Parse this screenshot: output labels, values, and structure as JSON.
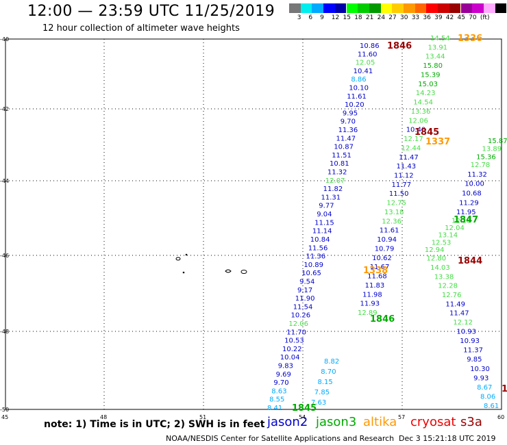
{
  "title": "12:00 — 23:59 UTC 11/25/2019",
  "subtitle": "12 hour collection of altimeter wave heights",
  "color_scale": {
    "colors": [
      "#777777",
      "#00eeee",
      "#00aaff",
      "#0000ff",
      "#0000aa",
      "#00ff00",
      "#00cc00",
      "#009900",
      "#ffff00",
      "#ffcc00",
      "#ff9900",
      "#ff6600",
      "#ff0000",
      "#cc0000",
      "#990000",
      "#990099",
      "#cc00cc",
      "#ffaaff",
      "#000000"
    ],
    "labels": [
      "3",
      "6",
      "9",
      "12",
      "15",
      "18",
      "21",
      "24",
      "27",
      "30",
      "33",
      "36",
      "39",
      "42",
      "45",
      "70",
      "(ft)"
    ]
  },
  "axes": {
    "lon_labels": [
      "45",
      "48",
      "51",
      "54",
      "57",
      "60"
    ],
    "lat_labels": [
      "-40",
      "-42",
      "-44",
      "-46",
      "-48",
      "-50"
    ]
  },
  "note": "note: 1) Time is in UTC; 2) SWH is in feet",
  "credit": "NOAA/NESDIS Center for Satellite Applications and Research",
  "generated": "Dec  3 15:21:18 UTC 2019",
  "satellites": [
    {
      "name": "jason2",
      "color": "#0000cc"
    },
    {
      "name": "jason3",
      "color": "#00aa00"
    },
    {
      "name": "altika",
      "color": "#ff9900"
    },
    {
      "name": "cryosat",
      "color": "#ee0000"
    },
    {
      "name": "s3a",
      "color": "#990000"
    }
  ],
  "tracks": [
    {
      "id": "track-a",
      "labels": [
        {
          "t": "10.86",
          "c": "#0000cc"
        },
        {
          "t": "11.60",
          "c": "#0000cc"
        },
        {
          "t": "12.05",
          "c": "#44dd44"
        },
        {
          "t": "10.41",
          "c": "#0000cc"
        },
        {
          "t": "8.86",
          "c": "#00aaff"
        },
        {
          "t": "10.10",
          "c": "#0000cc"
        },
        {
          "t": "11.61",
          "c": "#0000cc"
        },
        {
          "t": "10.20",
          "c": "#0000cc"
        },
        {
          "t": "9.95",
          "c": "#0000cc"
        },
        {
          "t": "9.70",
          "c": "#0000cc"
        },
        {
          "t": "11.36",
          "c": "#0000cc"
        },
        {
          "t": "11.47",
          "c": "#0000cc"
        },
        {
          "t": "10.87",
          "c": "#0000cc"
        },
        {
          "t": "11.51",
          "c": "#0000cc"
        },
        {
          "t": "10.81",
          "c": "#0000cc"
        },
        {
          "t": "11.32",
          "c": "#0000cc"
        },
        {
          "t": "12.07",
          "c": "#44dd44"
        },
        {
          "t": "11.82",
          "c": "#0000cc"
        },
        {
          "t": "11.31",
          "c": "#0000cc"
        },
        {
          "t": "9.77",
          "c": "#0000cc"
        },
        {
          "t": "9.04",
          "c": "#0000cc"
        },
        {
          "t": "11.15",
          "c": "#0000cc"
        },
        {
          "t": "11.14",
          "c": "#0000cc"
        },
        {
          "t": "10.84",
          "c": "#0000cc"
        },
        {
          "t": "11.56",
          "c": "#0000cc"
        },
        {
          "t": "11.36",
          "c": "#0000cc"
        },
        {
          "t": "10.89",
          "c": "#0000cc"
        },
        {
          "t": "10.65",
          "c": "#0000cc"
        },
        {
          "t": "9.54",
          "c": "#0000cc"
        },
        {
          "t": "9.17",
          "c": "#0000cc"
        },
        {
          "t": "11.90",
          "c": "#0000cc"
        },
        {
          "t": "11.54",
          "c": "#0000cc"
        },
        {
          "t": "10.26",
          "c": "#0000cc"
        },
        {
          "t": "12.06",
          "c": "#44dd44"
        },
        {
          "t": "11.70",
          "c": "#0000cc"
        },
        {
          "t": "10.53",
          "c": "#0000cc"
        },
        {
          "t": "10.22",
          "c": "#0000cc"
        },
        {
          "t": "10.04",
          "c": "#0000cc"
        },
        {
          "t": "9.83",
          "c": "#0000cc"
        },
        {
          "t": "9.69",
          "c": "#0000cc"
        },
        {
          "t": "9.70",
          "c": "#0000cc"
        },
        {
          "t": "8.63",
          "c": "#00aaff"
        },
        {
          "t": "8.55",
          "c": "#00aaff"
        },
        {
          "t": "8.41",
          "c": "#00aaff"
        }
      ]
    },
    {
      "id": "track-b",
      "labels": [
        {
          "t": "14.54",
          "c": "#44dd44"
        },
        {
          "t": "13.91",
          "c": "#44dd44"
        },
        {
          "t": "13.44",
          "c": "#44dd44"
        },
        {
          "t": "15.80",
          "c": "#00aa00"
        },
        {
          "t": "15.39",
          "c": "#00aa00"
        },
        {
          "t": "15.03",
          "c": "#00aa00"
        },
        {
          "t": "14.23",
          "c": "#44dd44"
        },
        {
          "t": "14.54",
          "c": "#44dd44"
        },
        {
          "t": "13.36",
          "c": "#44dd44"
        },
        {
          "t": "12.06",
          "c": "#44dd44"
        },
        {
          "t": "10.40",
          "c": "#0000cc"
        },
        {
          "t": "12.17",
          "c": "#44dd44"
        },
        {
          "t": "12.44",
          "c": "#44dd44"
        },
        {
          "t": "11.47",
          "c": "#0000cc"
        },
        {
          "t": "11.43",
          "c": "#0000cc"
        },
        {
          "t": "11.12",
          "c": "#0000cc"
        },
        {
          "t": "11.77",
          "c": "#0000cc"
        },
        {
          "t": "11.50",
          "c": "#0000cc"
        },
        {
          "t": "12.75",
          "c": "#44dd44"
        },
        {
          "t": "13.18",
          "c": "#44dd44"
        },
        {
          "t": "12.36",
          "c": "#44dd44"
        },
        {
          "t": "11.61",
          "c": "#0000cc"
        },
        {
          "t": "10.94",
          "c": "#0000cc"
        },
        {
          "t": "10.79",
          "c": "#0000cc"
        },
        {
          "t": "10.62",
          "c": "#0000cc"
        },
        {
          "t": "11.67",
          "c": "#0000cc"
        },
        {
          "t": "11.68",
          "c": "#0000cc"
        },
        {
          "t": "11.83",
          "c": "#0000cc"
        },
        {
          "t": "11.98",
          "c": "#0000cc"
        },
        {
          "t": "11.93",
          "c": "#0000cc"
        },
        {
          "t": "12.89",
          "c": "#44dd44"
        }
      ]
    },
    {
      "id": "track-c",
      "labels": [
        {
          "t": "15.87",
          "c": "#00aa00"
        },
        {
          "t": "13.89",
          "c": "#44dd44"
        },
        {
          "t": "15.36",
          "c": "#00aa00"
        },
        {
          "t": "12.78",
          "c": "#44dd44"
        },
        {
          "t": "11.32",
          "c": "#0000cc"
        },
        {
          "t": "10.00",
          "c": "#0000cc"
        },
        {
          "t": "10.68",
          "c": "#0000cc"
        },
        {
          "t": "11.29",
          "c": "#0000cc"
        },
        {
          "t": "11.95",
          "c": "#0000cc"
        },
        {
          "t": "12.15",
          "c": "#44dd44"
        },
        {
          "t": "12.04",
          "c": "#44dd44"
        },
        {
          "t": "13.14",
          "c": "#44dd44"
        },
        {
          "t": "12.53",
          "c": "#44dd44"
        },
        {
          "t": "12.94",
          "c": "#44dd44"
        },
        {
          "t": "12.80",
          "c": "#44dd44"
        },
        {
          "t": "14.03",
          "c": "#44dd44"
        },
        {
          "t": "13.38",
          "c": "#44dd44"
        },
        {
          "t": "12.28",
          "c": "#44dd44"
        },
        {
          "t": "12.76",
          "c": "#44dd44"
        },
        {
          "t": "11.49",
          "c": "#0000cc"
        },
        {
          "t": "11.47",
          "c": "#0000cc"
        },
        {
          "t": "12.12",
          "c": "#44dd44"
        },
        {
          "t": "10.93",
          "c": "#0000cc"
        },
        {
          "t": "10.93",
          "c": "#0000cc"
        },
        {
          "t": "11.37",
          "c": "#0000cc"
        },
        {
          "t": "9.85",
          "c": "#0000cc"
        },
        {
          "t": "10.30",
          "c": "#0000cc"
        },
        {
          "t": "9.93",
          "c": "#0000cc"
        },
        {
          "t": "8.67",
          "c": "#00aaff"
        },
        {
          "t": "8.06",
          "c": "#00aaff"
        },
        {
          "t": "8.61",
          "c": "#00aaff"
        }
      ]
    },
    {
      "id": "track-d",
      "labels": [
        {
          "t": "8.82",
          "c": "#00aaff"
        },
        {
          "t": "8.70",
          "c": "#00aaff"
        },
        {
          "t": "8.15",
          "c": "#00aaff"
        },
        {
          "t": "7.85",
          "c": "#00aaff"
        },
        {
          "t": "7.63",
          "c": "#00aaff"
        }
      ]
    }
  ],
  "time_tags": [
    {
      "t": "1846",
      "c": "#990000"
    },
    {
      "t": "1336",
      "c": "#ff9900"
    },
    {
      "t": "1845",
      "c": "#990000"
    },
    {
      "t": "1337",
      "c": "#ff9900"
    },
    {
      "t": "1847",
      "c": "#00aa00"
    },
    {
      "t": "1844",
      "c": "#990000"
    },
    {
      "t": "1338",
      "c": "#ff9900"
    },
    {
      "t": "1846",
      "c": "#00aa00"
    },
    {
      "t": "1845",
      "c": "#00aa00"
    },
    {
      "t": "1",
      "c": "#990000"
    }
  ]
}
